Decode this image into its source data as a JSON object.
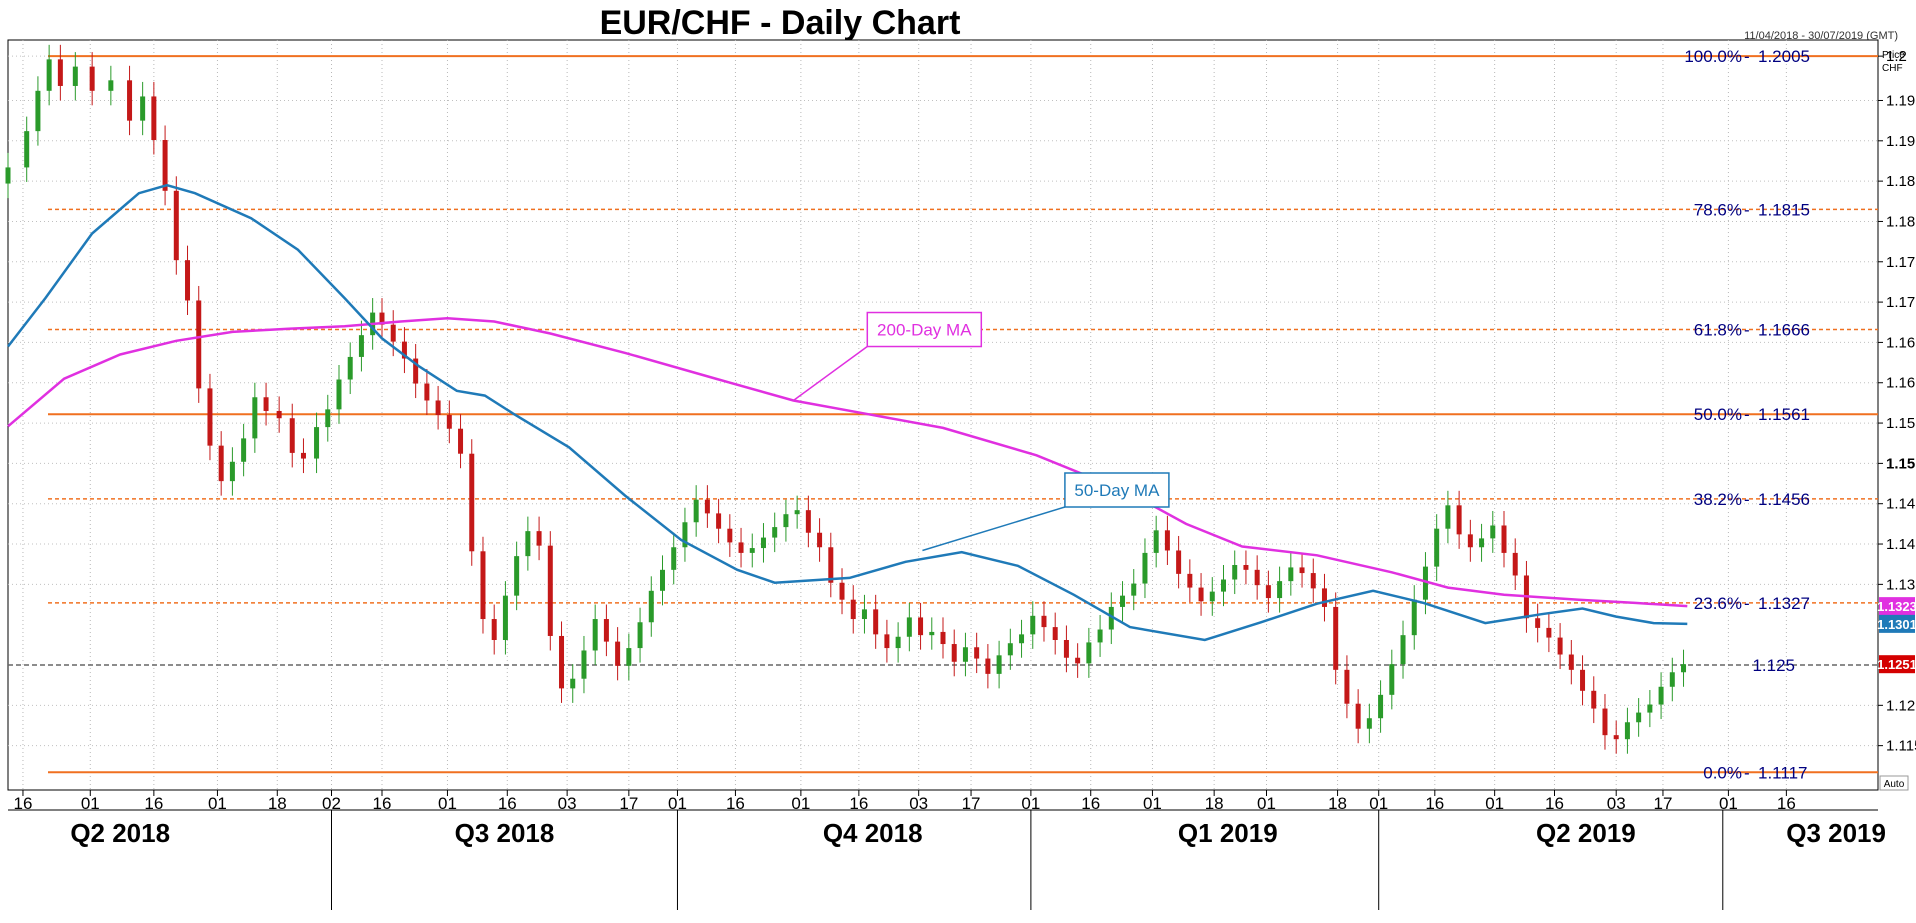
{
  "chart_data": {
    "type": "candlestick",
    "title": "EUR/CHF - Daily Chart",
    "date_range": "11/04/2018 - 30/07/2019 (GMT)",
    "price_axis_label": "Price",
    "currency_label": "CHF",
    "auto_label": "Auto",
    "ylim": [
      1.1095,
      1.2025
    ],
    "y_ticks": [
      {
        "value": 1.2005,
        "label": "1.2"
      },
      {
        "value": 1.195,
        "label": "1.195"
      },
      {
        "value": 1.19,
        "label": "1.19"
      },
      {
        "value": 1.185,
        "label": "1.185"
      },
      {
        "value": 1.18,
        "label": "1.18"
      },
      {
        "value": 1.175,
        "label": "1.175"
      },
      {
        "value": 1.17,
        "label": "1.17"
      },
      {
        "value": 1.165,
        "label": "1.165"
      },
      {
        "value": 1.16,
        "label": "1.16"
      },
      {
        "value": 1.155,
        "label": "1.155"
      },
      {
        "value": 1.15,
        "label": "1.15",
        "bold": true
      },
      {
        "value": 1.145,
        "label": "1.145"
      },
      {
        "value": 1.14,
        "label": "1.14"
      },
      {
        "value": 1.135,
        "label": "1.135"
      },
      {
        "value": 1.12,
        "label": "1.12"
      },
      {
        "value": 1.115,
        "label": "1.115"
      }
    ],
    "day_labels": [
      "16",
      "01",
      "16",
      "01",
      "18",
      "02",
      "16",
      "01",
      "16",
      "03",
      "17",
      "01",
      "16",
      "01",
      "16",
      "03",
      "17",
      "01",
      "16",
      "01",
      "18",
      "01",
      "18",
      "01",
      "16",
      "01",
      "16",
      "03",
      "17",
      "01",
      "16"
    ],
    "day_ticks_t": [
      0.008,
      0.044,
      0.078,
      0.112,
      0.144,
      0.173,
      0.2,
      0.235,
      0.267,
      0.299,
      0.332,
      0.358,
      0.389,
      0.424,
      0.455,
      0.487,
      0.515,
      0.547,
      0.579,
      0.612,
      0.645,
      0.673,
      0.711,
      0.733,
      0.763,
      0.795,
      0.827,
      0.86,
      0.885,
      0.92,
      0.951
    ],
    "quarters": [
      {
        "label": "Q2 2018",
        "t": 0.06
      },
      {
        "label": "Q3 2018",
        "t": 0.2655
      },
      {
        "label": "Q4 2018",
        "t": 0.4624
      },
      {
        "label": "Q1 2019",
        "t": 0.6523
      },
      {
        "label": "Q2 2019",
        "t": 0.8438
      },
      {
        "label": "Q3 2019",
        "t": 0.9776
      }
    ],
    "quarter_dividers_t": [
      0.173,
      0.358,
      0.547,
      0.733,
      0.917
    ],
    "fibonacci_levels": [
      {
        "label": "100.0%",
        "value": 1.2005,
        "value_label": "1.2005",
        "solid": true
      },
      {
        "label": "78.6%",
        "value": 1.1815,
        "value_label": "1.1815",
        "solid": false
      },
      {
        "label": "61.8%",
        "value": 1.1666,
        "value_label": "1.1666",
        "solid": false
      },
      {
        "label": "50.0%",
        "value": 1.1561,
        "value_label": "1.1561",
        "solid": true
      },
      {
        "label": "38.2%",
        "value": 1.1456,
        "value_label": "1.1456",
        "solid": false
      },
      {
        "label": "23.6%",
        "value": 1.1327,
        "value_label": "1.1327",
        "solid": false
      },
      {
        "label": "0.0%",
        "value": 1.1117,
        "value_label": "1.1117",
        "solid": true
      }
    ],
    "current_line": {
      "value": 1.125,
      "label": "1.125"
    },
    "badges": [
      {
        "label": "1.1323",
        "value": 1.1323,
        "color": "#e030e0",
        "text_color": "#ffffff"
      },
      {
        "label": "1.1301",
        "value": 1.1301,
        "color": "#1f7ab8",
        "text_color": "#ffffff"
      },
      {
        "label": "1.1251",
        "value": 1.1251,
        "color": "#d40000",
        "text_color": "#ffffff"
      }
    ],
    "annotations": [
      {
        "text": "200-Day MA",
        "color": "#e030e0",
        "box_t": 0.49,
        "box_value": 1.1666,
        "target_t": 0.42,
        "target_value": 1.1578
      },
      {
        "text": "50-Day MA",
        "color": "#1f7ab8",
        "box_t": 0.593,
        "box_value": 1.1467,
        "target_t": 0.489,
        "target_value": 1.1392
      }
    ],
    "series": [
      {
        "name": "200-Day MA",
        "color": "#e030e0",
        "points": [
          [
            0.0,
            1.1546
          ],
          [
            0.03,
            1.1605
          ],
          [
            0.06,
            1.1635
          ],
          [
            0.09,
            1.1652
          ],
          [
            0.12,
            1.1663
          ],
          [
            0.15,
            1.1667
          ],
          [
            0.18,
            1.167
          ],
          [
            0.21,
            1.1676
          ],
          [
            0.235,
            1.168
          ],
          [
            0.26,
            1.1676
          ],
          [
            0.29,
            1.1661
          ],
          [
            0.33,
            1.1637
          ],
          [
            0.38,
            1.1604
          ],
          [
            0.42,
            1.1578
          ],
          [
            0.46,
            1.1561
          ],
          [
            0.5,
            1.1544
          ],
          [
            0.55,
            1.151
          ],
          [
            0.6,
            1.1463
          ],
          [
            0.63,
            1.1425
          ],
          [
            0.66,
            1.1397
          ],
          [
            0.7,
            1.1386
          ],
          [
            0.74,
            1.1365
          ],
          [
            0.77,
            1.1346
          ],
          [
            0.8,
            1.1337
          ],
          [
            0.84,
            1.1331
          ],
          [
            0.87,
            1.1327
          ],
          [
            0.898,
            1.1323
          ]
        ]
      },
      {
        "name": "50-Day MA",
        "color": "#1f7ab8",
        "points": [
          [
            0.0,
            1.1645
          ],
          [
            0.02,
            1.1705
          ],
          [
            0.045,
            1.1785
          ],
          [
            0.07,
            1.1835
          ],
          [
            0.085,
            1.1845
          ],
          [
            0.1,
            1.1835
          ],
          [
            0.13,
            1.1804
          ],
          [
            0.155,
            1.1765
          ],
          [
            0.18,
            1.1705
          ],
          [
            0.2,
            1.1655
          ],
          [
            0.22,
            1.162
          ],
          [
            0.24,
            1.159
          ],
          [
            0.255,
            1.1584
          ],
          [
            0.27,
            1.1562
          ],
          [
            0.3,
            1.152
          ],
          [
            0.33,
            1.146
          ],
          [
            0.36,
            1.1405
          ],
          [
            0.39,
            1.1368
          ],
          [
            0.41,
            1.1352
          ],
          [
            0.45,
            1.1358
          ],
          [
            0.48,
            1.1378
          ],
          [
            0.51,
            1.139
          ],
          [
            0.54,
            1.1373
          ],
          [
            0.57,
            1.1337
          ],
          [
            0.6,
            1.1297
          ],
          [
            0.64,
            1.1281
          ],
          [
            0.67,
            1.1303
          ],
          [
            0.7,
            1.1326
          ],
          [
            0.73,
            1.1342
          ],
          [
            0.757,
            1.1327
          ],
          [
            0.79,
            1.1302
          ],
          [
            0.82,
            1.1313
          ],
          [
            0.842,
            1.132
          ],
          [
            0.86,
            1.131
          ],
          [
            0.88,
            1.1302
          ],
          [
            0.898,
            1.1301
          ]
        ]
      },
      {
        "name": "EUR/CHF daily close",
        "color": "#333333",
        "candles": [
          [
            0.0,
            1.1867
          ],
          [
            0.01,
            1.1912
          ],
          [
            0.016,
            1.1962
          ],
          [
            0.022,
            1.2001
          ],
          [
            0.028,
            1.1968
          ],
          [
            0.036,
            1.1992
          ],
          [
            0.045,
            1.1962
          ],
          [
            0.055,
            1.1975
          ],
          [
            0.065,
            1.1925
          ],
          [
            0.072,
            1.1955
          ],
          [
            0.078,
            1.1901
          ],
          [
            0.084,
            1.1838
          ],
          [
            0.09,
            1.1752
          ],
          [
            0.096,
            1.1702
          ],
          [
            0.102,
            1.1593
          ],
          [
            0.108,
            1.1522
          ],
          [
            0.114,
            1.1478
          ],
          [
            0.12,
            1.1502
          ],
          [
            0.126,
            1.1531
          ],
          [
            0.132,
            1.1582
          ],
          [
            0.138,
            1.1565
          ],
          [
            0.145,
            1.1556
          ],
          [
            0.152,
            1.1513
          ],
          [
            0.158,
            1.1506
          ],
          [
            0.165,
            1.1545
          ],
          [
            0.171,
            1.1567
          ],
          [
            0.177,
            1.1604
          ],
          [
            0.183,
            1.1632
          ],
          [
            0.189,
            1.1659
          ],
          [
            0.195,
            1.1687
          ],
          [
            0.2,
            1.1672
          ],
          [
            0.206,
            1.1651
          ],
          [
            0.212,
            1.163
          ],
          [
            0.218,
            1.1599
          ],
          [
            0.224,
            1.1578
          ],
          [
            0.23,
            1.156
          ],
          [
            0.236,
            1.1543
          ],
          [
            0.242,
            1.1512
          ],
          [
            0.248,
            1.1391
          ],
          [
            0.254,
            1.1307
          ],
          [
            0.26,
            1.1281
          ],
          [
            0.266,
            1.1336
          ],
          [
            0.272,
            1.1385
          ],
          [
            0.278,
            1.1416
          ],
          [
            0.284,
            1.1398
          ],
          [
            0.29,
            1.1286
          ],
          [
            0.296,
            1.1221
          ],
          [
            0.302,
            1.1233
          ],
          [
            0.308,
            1.1268
          ],
          [
            0.314,
            1.1307
          ],
          [
            0.32,
            1.1279
          ],
          [
            0.326,
            1.1249
          ],
          [
            0.332,
            1.1271
          ],
          [
            0.338,
            1.1303
          ],
          [
            0.344,
            1.1342
          ],
          [
            0.35,
            1.1368
          ],
          [
            0.356,
            1.1396
          ],
          [
            0.362,
            1.1427
          ],
          [
            0.368,
            1.1455
          ],
          [
            0.374,
            1.1438
          ],
          [
            0.38,
            1.1419
          ],
          [
            0.386,
            1.1402
          ],
          [
            0.392,
            1.1389
          ],
          [
            0.398,
            1.1395
          ],
          [
            0.404,
            1.1408
          ],
          [
            0.41,
            1.1421
          ],
          [
            0.416,
            1.1437
          ],
          [
            0.422,
            1.1442
          ],
          [
            0.428,
            1.1414
          ],
          [
            0.434,
            1.1396
          ],
          [
            0.44,
            1.1352
          ],
          [
            0.446,
            1.1331
          ],
          [
            0.452,
            1.1307
          ],
          [
            0.458,
            1.1319
          ],
          [
            0.464,
            1.1288
          ],
          [
            0.47,
            1.1271
          ],
          [
            0.476,
            1.1285
          ],
          [
            0.482,
            1.1309
          ],
          [
            0.488,
            1.1287
          ],
          [
            0.494,
            1.1291
          ],
          [
            0.5,
            1.1276
          ],
          [
            0.506,
            1.1254
          ],
          [
            0.512,
            1.1272
          ],
          [
            0.518,
            1.1258
          ],
          [
            0.524,
            1.1239
          ],
          [
            0.53,
            1.1262
          ],
          [
            0.536,
            1.1277
          ],
          [
            0.542,
            1.1288
          ],
          [
            0.548,
            1.1311
          ],
          [
            0.554,
            1.1297
          ],
          [
            0.56,
            1.1281
          ],
          [
            0.566,
            1.1259
          ],
          [
            0.572,
            1.1252
          ],
          [
            0.578,
            1.1278
          ],
          [
            0.584,
            1.1294
          ],
          [
            0.59,
            1.1322
          ],
          [
            0.596,
            1.1336
          ],
          [
            0.602,
            1.1351
          ],
          [
            0.608,
            1.1389
          ],
          [
            0.614,
            1.1417
          ],
          [
            0.62,
            1.1392
          ],
          [
            0.626,
            1.1363
          ],
          [
            0.632,
            1.1346
          ],
          [
            0.638,
            1.1329
          ],
          [
            0.644,
            1.1341
          ],
          [
            0.65,
            1.1356
          ],
          [
            0.656,
            1.1374
          ],
          [
            0.662,
            1.1368
          ],
          [
            0.668,
            1.1349
          ],
          [
            0.674,
            1.1333
          ],
          [
            0.68,
            1.1354
          ],
          [
            0.686,
            1.1371
          ],
          [
            0.692,
            1.1364
          ],
          [
            0.698,
            1.1345
          ],
          [
            0.704,
            1.1322
          ],
          [
            0.71,
            1.1244
          ],
          [
            0.716,
            1.1202
          ],
          [
            0.722,
            1.1171
          ],
          [
            0.728,
            1.1184
          ],
          [
            0.734,
            1.1213
          ],
          [
            0.74,
            1.1251
          ],
          [
            0.746,
            1.1287
          ],
          [
            0.752,
            1.1331
          ],
          [
            0.758,
            1.1372
          ],
          [
            0.764,
            1.1419
          ],
          [
            0.77,
            1.1448
          ],
          [
            0.776,
            1.1412
          ],
          [
            0.782,
            1.1396
          ],
          [
            0.788,
            1.1407
          ],
          [
            0.794,
            1.1423
          ],
          [
            0.8,
            1.1389
          ],
          [
            0.806,
            1.1361
          ],
          [
            0.812,
            1.1308
          ],
          [
            0.818,
            1.1296
          ],
          [
            0.824,
            1.1284
          ],
          [
            0.83,
            1.1263
          ],
          [
            0.836,
            1.1244
          ],
          [
            0.842,
            1.1218
          ],
          [
            0.848,
            1.1196
          ],
          [
            0.854,
            1.1163
          ],
          [
            0.86,
            1.1158
          ],
          [
            0.866,
            1.1179
          ],
          [
            0.872,
            1.1191
          ],
          [
            0.878,
            1.1201
          ],
          [
            0.884,
            1.1223
          ],
          [
            0.89,
            1.1241
          ],
          [
            0.896,
            1.1251
          ]
        ]
      }
    ]
  }
}
